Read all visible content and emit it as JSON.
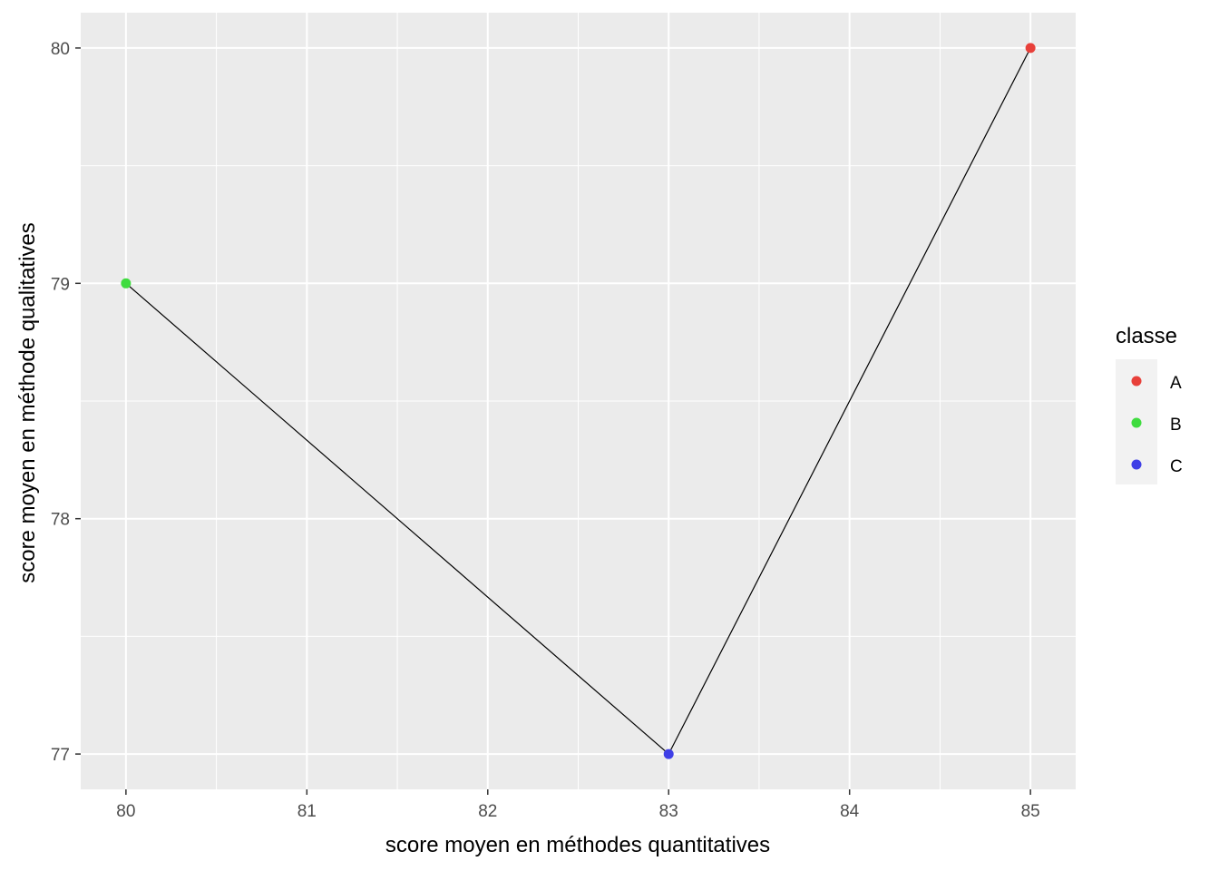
{
  "chart_data": {
    "type": "line",
    "title": "",
    "xlabel": "score moyen en méthodes quantitatives",
    "ylabel": "score moyen en méthode qualitatives",
    "xlim": [
      79.75,
      85.25
    ],
    "ylim": [
      76.85,
      80.15
    ],
    "x_ticks": [
      80,
      81,
      82,
      83,
      84,
      85
    ],
    "y_ticks": [
      77,
      78,
      79,
      80
    ],
    "grid": true,
    "legend_position": "right",
    "legend": {
      "title": "classe",
      "entries": [
        "A",
        "B",
        "C"
      ]
    },
    "line_order": [
      "B",
      "C",
      "A"
    ],
    "points": [
      {
        "classe": "A",
        "x": 85,
        "y": 80
      },
      {
        "classe": "B",
        "x": 80,
        "y": 79
      },
      {
        "classe": "C",
        "x": 83,
        "y": 77
      }
    ],
    "colors": {
      "A": "#e8403a",
      "B": "#3fdc3f",
      "C": "#3f3fe6",
      "panel": "#ebebeb",
      "grid": "#ffffff",
      "line": "#000000"
    }
  }
}
